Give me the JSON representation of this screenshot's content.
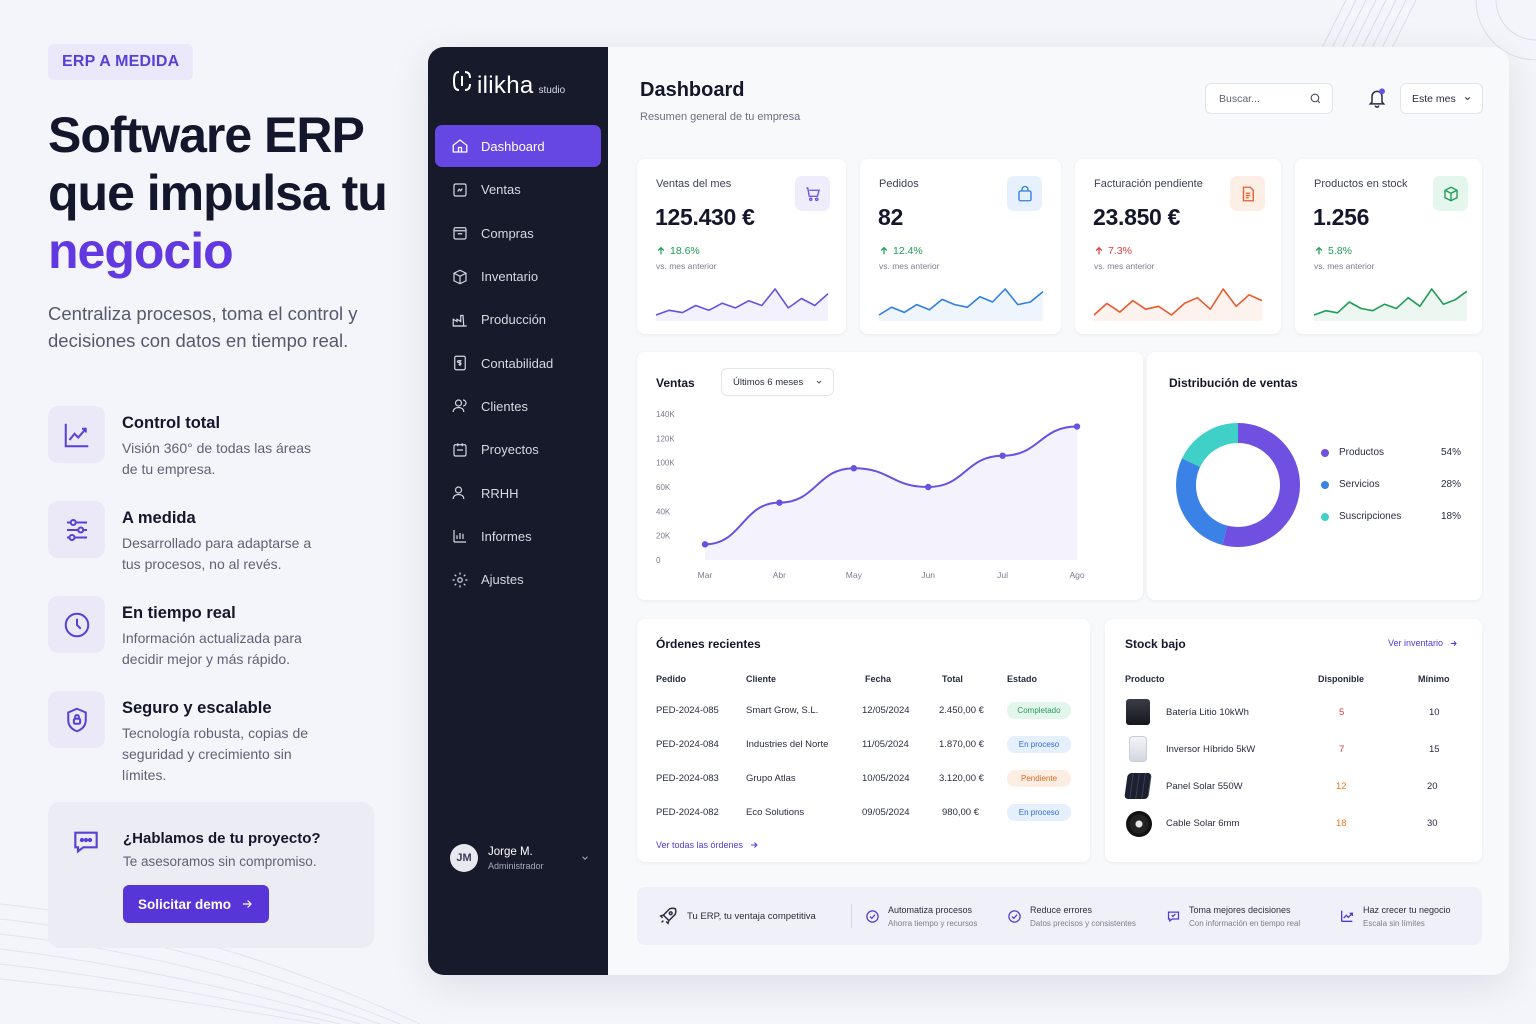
{
  "marketing": {
    "tag": "ERP A MEDIDA",
    "hero_line1": "Software ERP",
    "hero_line2": "que impulsa tu",
    "hero_accent": "negocio",
    "lead": "Centraliza procesos, toma el control y decisiones con datos en tiempo real.",
    "features": [
      {
        "title": "Control total",
        "desc": "Visión 360° de todas las áreas de tu empresa.",
        "icon": "chart-icon"
      },
      {
        "title": "A medida",
        "desc": "Desarrollado para adaptarse a tus procesos, no al revés.",
        "icon": "sliders-icon"
      },
      {
        "title": "En tiempo real",
        "desc": "Información actualizada para decidir mejor y más rápido.",
        "icon": "clock-icon"
      },
      {
        "title": "Seguro y escalable",
        "desc": "Tecnología robusta, copias de seguridad y crecimiento sin límites.",
        "icon": "shield-icon"
      }
    ],
    "cta": {
      "title": "¿Hablamos de tu proyecto?",
      "subtitle": "Te asesoramos sin compromiso.",
      "button": "Solicitar demo"
    }
  },
  "app": {
    "logo_word": "ilikha",
    "logo_sub": "studio",
    "nav": [
      {
        "label": "Dashboard",
        "icon": "home-icon",
        "active": true
      },
      {
        "label": "Ventas",
        "icon": "sales-icon"
      },
      {
        "label": "Compras",
        "icon": "purchases-icon"
      },
      {
        "label": "Inventario",
        "icon": "inventory-icon"
      },
      {
        "label": "Producción",
        "icon": "factory-icon"
      },
      {
        "label": "Contabilidad",
        "icon": "accounting-icon"
      },
      {
        "label": "Clientes",
        "icon": "clients-icon"
      },
      {
        "label": "Proyectos",
        "icon": "projects-icon"
      },
      {
        "label": "RRHH",
        "icon": "hr-icon"
      },
      {
        "label": "Informes",
        "icon": "reports-icon"
      },
      {
        "label": "Ajustes",
        "icon": "settings-icon"
      }
    ],
    "user": {
      "initials": "JM",
      "name": "Jorge M.",
      "role": "Administrador"
    },
    "header": {
      "title": "Dashboard",
      "subtitle": "Resumen general de tu empresa",
      "search_placeholder": "Buscar...",
      "period": "Este mes"
    },
    "kpis": [
      {
        "label": "Ventas del mes",
        "value": "125.430 €",
        "change": "18.6%",
        "note": "vs. mes anterior",
        "color": "#6a4fe0",
        "bg": "#efecfc",
        "icon": "cart-icon",
        "trend": [
          3,
          5,
          4,
          7,
          5,
          8,
          6,
          9,
          7,
          14,
          6,
          10,
          7,
          12
        ]
      },
      {
        "label": "Pedidos",
        "value": "82",
        "change": "12.4%",
        "note": "vs. mes anterior",
        "color": "#2f7fe3",
        "bg": "#e7f1fd",
        "icon": "bag-icon",
        "trend": [
          3,
          6,
          4,
          7,
          5,
          9,
          7,
          6,
          10,
          8,
          13,
          7,
          8,
          12
        ]
      },
      {
        "label": "Facturación pendiente",
        "value": "23.850 €",
        "change": "7.3%",
        "note": "vs. mes anterior",
        "color": "#ea5b2b",
        "bg": "#fdeee6",
        "icon": "invoice-icon",
        "trend": [
          5,
          9,
          6,
          10,
          7,
          8,
          5,
          9,
          11,
          7,
          14,
          8,
          12,
          10
        ]
      },
      {
        "label": "Productos en stock",
        "value": "1.256",
        "change": "5.8%",
        "note": "vs. mes anterior",
        "color": "#1f9d58",
        "bg": "#e5f6ec",
        "icon": "box-icon",
        "trend": [
          3,
          5,
          4,
          9,
          6,
          5,
          8,
          6,
          11,
          7,
          15,
          8,
          10,
          14
        ]
      }
    ],
    "sales_chart": {
      "title": "Ventas",
      "range": "Últimos 6 meses",
      "chart_data": {
        "type": "line",
        "categories": [
          "Mar",
          "Abr",
          "May",
          "Jun",
          "Jul",
          "Ago"
        ],
        "values": [
          15000,
          55000,
          88000,
          70000,
          100000,
          128000
        ],
        "y_ticks": [
          "140K",
          "120K",
          "100K",
          "60K",
          "40K",
          "20K",
          "0"
        ],
        "ylim": [
          0,
          140000
        ],
        "color": "#6a4fe0"
      }
    },
    "distribution": {
      "title": "Distribución de ventas",
      "chart_data": {
        "type": "pie",
        "labels": [
          "Productos",
          "Servicios",
          "Suscripciones"
        ],
        "values": [
          54,
          28,
          18
        ],
        "pct_labels": [
          "54%",
          "28%",
          "18%"
        ],
        "colors": [
          "#7050e0",
          "#3b82e6",
          "#3fd0c8"
        ]
      }
    },
    "orders": {
      "title": "Órdenes recientes",
      "headers": [
        "Pedido",
        "Cliente",
        "Fecha",
        "Total",
        "Estado"
      ],
      "rows": [
        {
          "id": "PED-2024-085",
          "client": "Smart Grow, S.L.",
          "date": "12/05/2024",
          "total": "2.450,00 €",
          "status": "Completado",
          "fg": "#2a9a5e",
          "bg": "#e3f6eb"
        },
        {
          "id": "PED-2024-084",
          "client": "Industries del Norte",
          "date": "11/05/2024",
          "total": "1.870,00 €",
          "status": "En proceso",
          "fg": "#2f6fd6",
          "bg": "#e6effc"
        },
        {
          "id": "PED-2024-083",
          "client": "Grupo Atlas",
          "date": "10/05/2024",
          "total": "3.120,00 €",
          "status": "Pendiente",
          "fg": "#e06a24",
          "bg": "#fdeee3"
        },
        {
          "id": "PED-2024-082",
          "client": "Eco Solutions",
          "date": "09/05/2024",
          "total": "980,00 €",
          "status": "En proceso",
          "fg": "#2f6fd6",
          "bg": "#e6effc"
        }
      ],
      "link": "Ver todas las órdenes"
    },
    "stock": {
      "title": "Stock bajo",
      "link": "Ver inventario",
      "headers": [
        "Producto",
        "Disponible",
        "Mínimo"
      ],
      "rows": [
        {
          "name": "Batería Litio 10kWh",
          "available": "5",
          "min": "10",
          "color": "#e03b3b",
          "thumb": "battery-thumb"
        },
        {
          "name": "Inversor Híbrido 5kW",
          "available": "7",
          "min": "15",
          "color": "#e03b3b",
          "thumb": "inverter-thumb"
        },
        {
          "name": "Panel Solar 550W",
          "available": "12",
          "min": "20",
          "color": "#ea7a22",
          "thumb": "panel-thumb"
        },
        {
          "name": "Cable Solar 6mm",
          "available": "18",
          "min": "30",
          "color": "#ea7a22",
          "thumb": "cable-thumb"
        }
      ]
    },
    "banner": {
      "lead": "Tu ERP, tu ventaja competitiva",
      "items": [
        {
          "title": "Automatiza procesos",
          "sub": "Ahorra tiempo y recursos",
          "icon": "check-circle-icon"
        },
        {
          "title": "Reduce errores",
          "sub": "Datos precisos y consistentes",
          "icon": "check-shield-icon"
        },
        {
          "title": "Toma mejores decisiones",
          "sub": "Con información en tiempo real",
          "icon": "chat-check-icon"
        },
        {
          "title": "Haz crecer tu negocio",
          "sub": "Escala sin límites",
          "icon": "growth-icon"
        }
      ]
    }
  }
}
